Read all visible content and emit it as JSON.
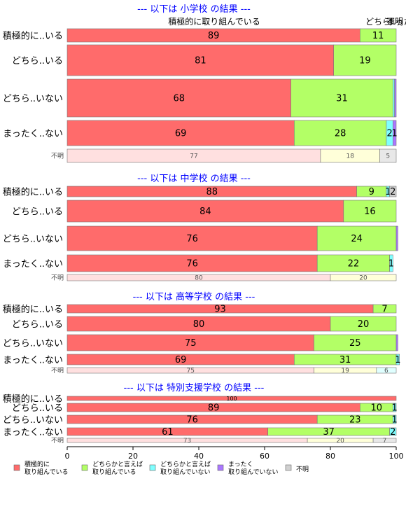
{
  "chart_data": {
    "type": "bar",
    "orientation": "horizontal",
    "stacked": true,
    "xlim": [
      0,
      100
    ],
    "x_ticks": [
      "0",
      "20",
      "40",
      "60",
      "80",
      "100"
    ],
    "grid": false,
    "legend_position": "bottom-left",
    "column_header_labels": [
      "積極的に取り組んでいる",
      "どちら..",
      "不明",
      "まった.."
    ],
    "series": [
      {
        "key": "s1",
        "name": "積極的に\n取り組んでいる",
        "color": "#FF6B6B"
      },
      {
        "key": "s2",
        "name": "どちらかと言えば\n取り組んでいる",
        "color": "#B3FF66"
      },
      {
        "key": "s3",
        "name": "どちらかと言えば\n取り組んでいない",
        "color": "#80FFFF"
      },
      {
        "key": "s4",
        "name": "まったく\n取り組んでいない",
        "color": "#AA77FF"
      },
      {
        "key": "s5",
        "name": "不明",
        "color": "#D0D0D0"
      }
    ],
    "unknown_row_colors": [
      "#FFE0E0",
      "#FFFFD9",
      "#E0FFFF",
      "#EEEEEE",
      "#E8E8E8"
    ],
    "panels": [
      {
        "title": "--- 以下は 小学校 の結果 ---",
        "rows": [
          {
            "label": "積極的に..いる",
            "values": [
              89,
              11,
              0,
              0,
              0
            ],
            "labels": [
              "89",
              "11",
              "",
              "",
              ""
            ]
          },
          {
            "label": "どちら..いる",
            "values": [
              81,
              19,
              0,
              0,
              0
            ],
            "labels": [
              "81",
              "19",
              "",
              "",
              ""
            ]
          },
          {
            "label": "どちら..いない",
            "values": [
              68,
              31,
              0.5,
              0.5,
              0
            ],
            "labels": [
              "68",
              "31",
              "",
              "",
              ""
            ]
          },
          {
            "label": "まったく..ない",
            "values": [
              69,
              28,
              2,
              1,
              0
            ],
            "labels": [
              "69",
              "28",
              "2",
              "1",
              ""
            ]
          },
          {
            "label": "不明",
            "values": [
              77,
              18,
              0,
              0,
              5
            ],
            "labels": [
              "77",
              "18",
              "",
              "",
              "5"
            ],
            "unknown": true
          }
        ]
      },
      {
        "title": "--- 以下は 中学校 の結果 ---",
        "rows": [
          {
            "label": "積極的に..いる",
            "values": [
              88,
              9,
              1,
              0,
              2
            ],
            "labels": [
              "88",
              "9",
              "1",
              "",
              "2"
            ]
          },
          {
            "label": "どちら..いる",
            "values": [
              84,
              16,
              0,
              0,
              0
            ],
            "labels": [
              "84",
              "16",
              "",
              "",
              ""
            ]
          },
          {
            "label": "どちら..いない",
            "values": [
              76,
              24,
              0,
              0.5,
              0
            ],
            "labels": [
              "76",
              "24",
              "",
              "",
              ""
            ]
          },
          {
            "label": "まったく..ない",
            "values": [
              76,
              22,
              1,
              0,
              0
            ],
            "labels": [
              "76",
              "22",
              "1",
              "",
              ""
            ]
          },
          {
            "label": "不明",
            "values": [
              80,
              20,
              0,
              0,
              0
            ],
            "labels": [
              "80",
              "20",
              "",
              "",
              ""
            ],
            "unknown": true
          }
        ]
      },
      {
        "title": "--- 以下は 高等学校 の結果 ---",
        "rows": [
          {
            "label": "積極的に..いる",
            "values": [
              93,
              7,
              0,
              0,
              0
            ],
            "labels": [
              "93",
              "7",
              "",
              "",
              ""
            ]
          },
          {
            "label": "どちら..いる",
            "values": [
              80,
              20,
              0,
              0,
              0
            ],
            "labels": [
              "80",
              "20",
              "",
              "",
              ""
            ]
          },
          {
            "label": "どちら..いない",
            "values": [
              75,
              25,
              0,
              0.5,
              0
            ],
            "labels": [
              "75",
              "25",
              "",
              "",
              ""
            ]
          },
          {
            "label": "まったく..ない",
            "values": [
              69,
              31,
              1,
              0,
              0
            ],
            "labels": [
              "69",
              "31",
              "1",
              "",
              ""
            ]
          },
          {
            "label": "不明",
            "values": [
              75,
              19,
              6,
              0,
              0
            ],
            "labels": [
              "75",
              "19",
              "6",
              "",
              ""
            ],
            "unknown": true
          }
        ]
      },
      {
        "title": "--- 以下は 特別支援学校 の結果 ---",
        "rows": [
          {
            "label": "積極的に..いる",
            "values": [
              100,
              0,
              0,
              0,
              0
            ],
            "labels": [
              "100",
              "",
              "",
              "",
              ""
            ]
          },
          {
            "label": "どちら..いる",
            "values": [
              89,
              10,
              1,
              0,
              0
            ],
            "labels": [
              "89",
              "10",
              "1",
              "",
              ""
            ]
          },
          {
            "label": "どちら..いない",
            "values": [
              76,
              23,
              1,
              0,
              0
            ],
            "labels": [
              "76",
              "23",
              "1",
              "",
              ""
            ]
          },
          {
            "label": "まったく..ない",
            "values": [
              61,
              37,
              2,
              0,
              0
            ],
            "labels": [
              "61",
              "37",
              "2",
              "",
              ""
            ]
          },
          {
            "label": "不明",
            "values": [
              73,
              20,
              0,
              0,
              7
            ],
            "labels": [
              "73",
              "20",
              "",
              "",
              "7"
            ],
            "unknown": true
          }
        ]
      }
    ]
  }
}
